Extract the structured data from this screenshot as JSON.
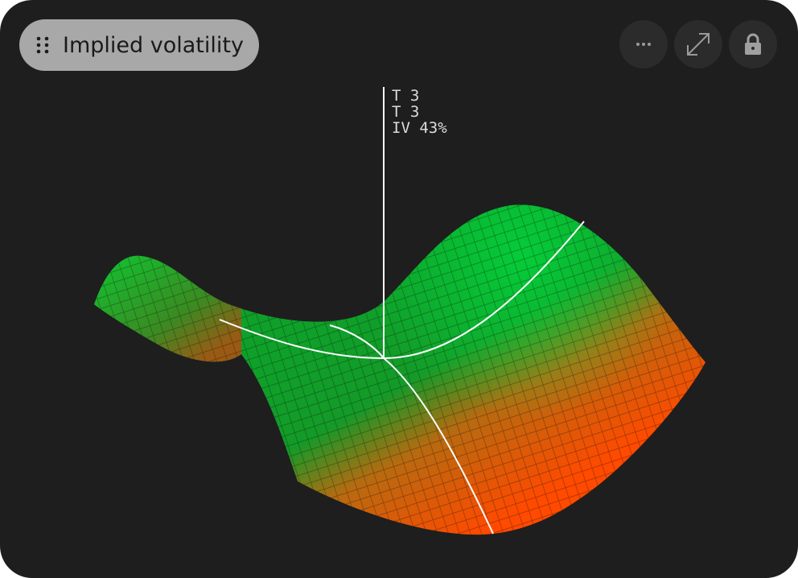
{
  "header": {
    "title": "Implied volatility"
  },
  "tooltip": {
    "lines": [
      "T 3",
      "T 3",
      "IV 43%"
    ]
  }
}
